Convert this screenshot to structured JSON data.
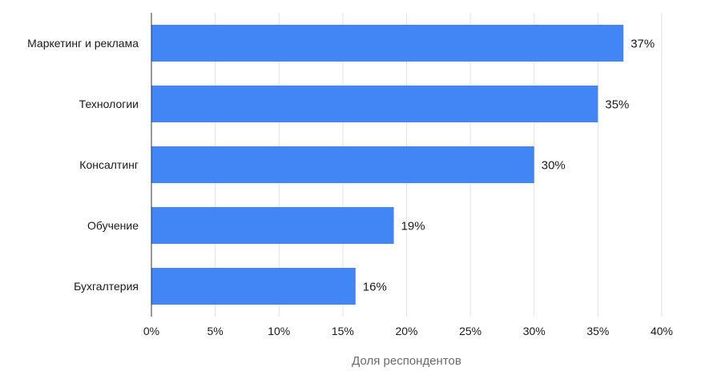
{
  "chart_data": {
    "type": "bar",
    "orientation": "horizontal",
    "categories": [
      "Маркетинг и реклама",
      "Технологии",
      "Консалтинг",
      "Обучение",
      "Бухгалтерия"
    ],
    "values": [
      37,
      35,
      30,
      19,
      16
    ],
    "value_labels": [
      "37%",
      "35%",
      "30%",
      "19%",
      "16%"
    ],
    "xlabel": "Доля респондентов",
    "ylabel": "",
    "xlim": [
      0,
      40
    ],
    "x_ticks": [
      0,
      5,
      10,
      15,
      20,
      25,
      30,
      35,
      40
    ],
    "x_tick_labels": [
      "0%",
      "5%",
      "10%",
      "15%",
      "20%",
      "25%",
      "30%",
      "35%",
      "40%"
    ],
    "grid": "vertical",
    "legend": "none",
    "colors": {
      "bar": "#4285f4",
      "grid": "#e3e3e3",
      "axis": "#333333"
    }
  }
}
